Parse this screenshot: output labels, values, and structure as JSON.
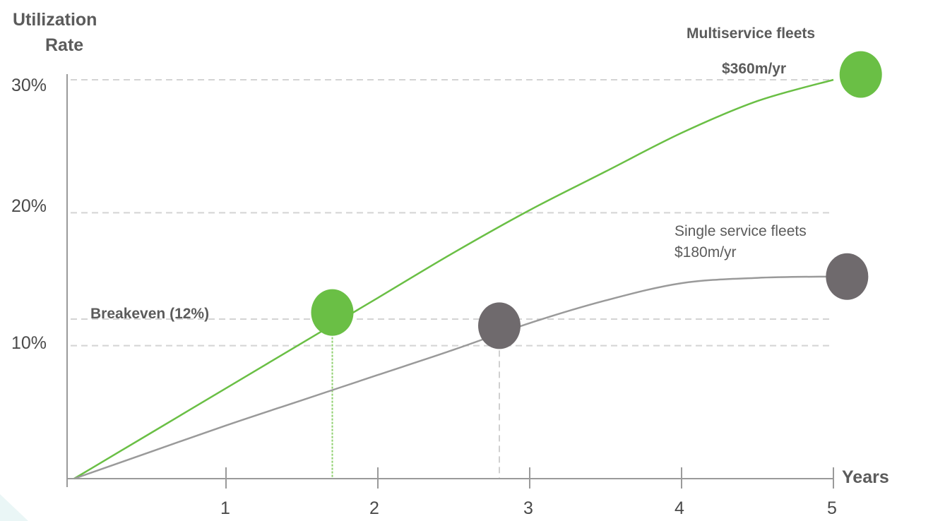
{
  "chart_data": {
    "type": "line",
    "title": "",
    "ylabel_line1": "Utilization",
    "ylabel_line2": "Rate",
    "xlabel": "Years",
    "xlim": [
      0,
      5
    ],
    "ylim": [
      0,
      30
    ],
    "y_ticks": [
      "30%",
      "20%",
      "10%"
    ],
    "y_tick_values": [
      30,
      20,
      10
    ],
    "x_ticks": [
      "1",
      "2",
      "3",
      "4",
      "5"
    ],
    "x_tick_values": [
      1,
      2,
      3,
      4,
      5
    ],
    "grid": "dashed horizontal at 30%, 20%, 12%",
    "series": [
      {
        "name": "Multiservice fleets",
        "value_label": "$360m/yr",
        "color": "#6abf45",
        "x": [
          0,
          0.5,
          1,
          1.5,
          2,
          2.5,
          3,
          3.5,
          4,
          4.5,
          5
        ],
        "y": [
          0,
          3.4,
          6.8,
          10.2,
          13.6,
          17,
          20.2,
          23.1,
          26,
          28.4,
          30
        ],
        "marker": {
          "x": 5.18,
          "y": 30.4
        }
      },
      {
        "name": "Single service fleets",
        "value_label": "$180m/yr",
        "color": "#9a9a9a",
        "x": [
          0,
          0.5,
          1,
          1.5,
          2,
          2.5,
          3,
          3.5,
          4,
          4.5,
          5
        ],
        "y": [
          0,
          2,
          4,
          5.9,
          7.8,
          9.7,
          11.7,
          13.4,
          14.7,
          15.1,
          15.2
        ],
        "marker": {
          "x": 5.09,
          "y": 15.2
        }
      }
    ],
    "breakeven": {
      "label": "Breakeven (12%)",
      "value": 12,
      "points": [
        {
          "series": "Multiservice fleets",
          "x": 1.7,
          "y": 12.5,
          "color": "#6abf45"
        },
        {
          "series": "Single service fleets",
          "x": 2.8,
          "y": 11.5,
          "color": "#6f6a6d"
        }
      ]
    }
  }
}
